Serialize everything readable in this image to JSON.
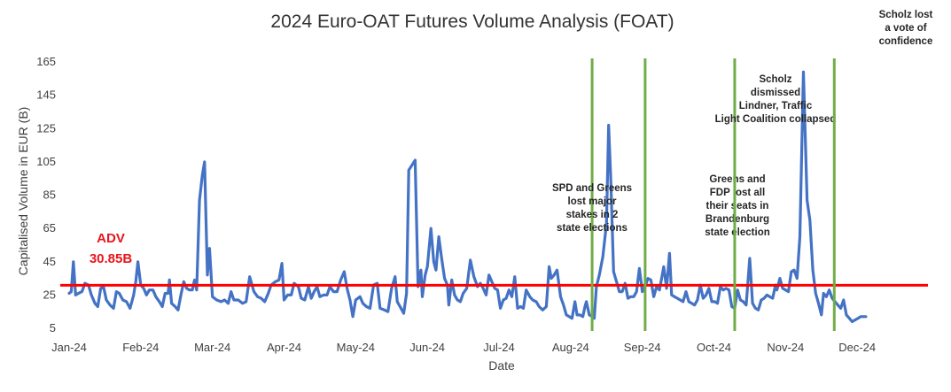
{
  "chart_data": {
    "type": "line",
    "title": "2024 Euro-OAT Futures Volume Analysis (FOAT)",
    "xlabel": "Date",
    "ylabel": "Capitalised Volume in EUR (B)",
    "ylim": [
      5,
      165
    ],
    "yticks": [
      5,
      25,
      45,
      65,
      85,
      105,
      125,
      145,
      165
    ],
    "xlim": [
      0,
      12
    ],
    "xticks": [
      {
        "label": "Jan-24",
        "x": 0
      },
      {
        "label": "Feb-24",
        "x": 1
      },
      {
        "label": "Mar-24",
        "x": 2
      },
      {
        "label": "Apr-24",
        "x": 3
      },
      {
        "label": "May-24",
        "x": 4
      },
      {
        "label": "Jun-24",
        "x": 5
      },
      {
        "label": "Jul-24",
        "x": 6
      },
      {
        "label": "Aug-24",
        "x": 7
      },
      {
        "label": "Sep-24",
        "x": 8
      },
      {
        "label": "Oct-24",
        "x": 9
      },
      {
        "label": "Nov-24",
        "x": 10
      },
      {
        "label": "Dec-24",
        "x": 11
      }
    ],
    "grid": false,
    "series": [
      {
        "color": "#4472c4",
        "points": [
          [
            0.0,
            26
          ],
          [
            0.03,
            27
          ],
          [
            0.06,
            45
          ],
          [
            0.09,
            25
          ],
          [
            0.13,
            26
          ],
          [
            0.18,
            27
          ],
          [
            0.22,
            32
          ],
          [
            0.27,
            31
          ],
          [
            0.31,
            25
          ],
          [
            0.36,
            20
          ],
          [
            0.4,
            18
          ],
          [
            0.44,
            29
          ],
          [
            0.48,
            30
          ],
          [
            0.52,
            22
          ],
          [
            0.57,
            19
          ],
          [
            0.62,
            17
          ],
          [
            0.66,
            27
          ],
          [
            0.7,
            26
          ],
          [
            0.75,
            22
          ],
          [
            0.8,
            21
          ],
          [
            0.85,
            17
          ],
          [
            0.9,
            25
          ],
          [
            0.93,
            33
          ],
          [
            0.96,
            45
          ],
          [
            1.0,
            31
          ],
          [
            1.04,
            29
          ],
          [
            1.08,
            25
          ],
          [
            1.12,
            28
          ],
          [
            1.17,
            28
          ],
          [
            1.21,
            24
          ],
          [
            1.26,
            21
          ],
          [
            1.3,
            18
          ],
          [
            1.34,
            26
          ],
          [
            1.38,
            26
          ],
          [
            1.4,
            34
          ],
          [
            1.43,
            20
          ],
          [
            1.48,
            18
          ],
          [
            1.52,
            16
          ],
          [
            1.56,
            25
          ],
          [
            1.6,
            33
          ],
          [
            1.64,
            29
          ],
          [
            1.68,
            28
          ],
          [
            1.72,
            28
          ],
          [
            1.75,
            34
          ],
          [
            1.78,
            28
          ],
          [
            1.82,
            82
          ],
          [
            1.86,
            97
          ],
          [
            1.89,
            105
          ],
          [
            1.93,
            37
          ],
          [
            1.96,
            53
          ],
          [
            2.0,
            24
          ],
          [
            2.06,
            22
          ],
          [
            2.12,
            21
          ],
          [
            2.17,
            22
          ],
          [
            2.22,
            20
          ],
          [
            2.26,
            27
          ],
          [
            2.3,
            22
          ],
          [
            2.36,
            22
          ],
          [
            2.42,
            20
          ],
          [
            2.47,
            21
          ],
          [
            2.52,
            36
          ],
          [
            2.58,
            27
          ],
          [
            2.63,
            24
          ],
          [
            2.68,
            23
          ],
          [
            2.73,
            21
          ],
          [
            2.78,
            26
          ],
          [
            2.82,
            31
          ],
          [
            2.88,
            33
          ],
          [
            2.93,
            34
          ],
          [
            2.97,
            44
          ],
          [
            3.0,
            22
          ],
          [
            3.05,
            25
          ],
          [
            3.1,
            25
          ],
          [
            3.14,
            32
          ],
          [
            3.2,
            30
          ],
          [
            3.24,
            23
          ],
          [
            3.29,
            22
          ],
          [
            3.34,
            30
          ],
          [
            3.38,
            23
          ],
          [
            3.42,
            27
          ],
          [
            3.46,
            30
          ],
          [
            3.5,
            24
          ],
          [
            3.55,
            25
          ],
          [
            3.6,
            25
          ],
          [
            3.64,
            30
          ],
          [
            3.69,
            27
          ],
          [
            3.74,
            27
          ],
          [
            3.79,
            34
          ],
          [
            3.84,
            39
          ],
          [
            3.88,
            29
          ],
          [
            3.92,
            22
          ],
          [
            3.96,
            12
          ],
          [
            4.0,
            22
          ],
          [
            4.06,
            24
          ],
          [
            4.1,
            20
          ],
          [
            4.15,
            18
          ],
          [
            4.2,
            17
          ],
          [
            4.25,
            31
          ],
          [
            4.3,
            32
          ],
          [
            4.34,
            17
          ],
          [
            4.4,
            16
          ],
          [
            4.45,
            15
          ],
          [
            4.5,
            29
          ],
          [
            4.55,
            36
          ],
          [
            4.58,
            21
          ],
          [
            4.62,
            18
          ],
          [
            4.67,
            14
          ],
          [
            4.71,
            26
          ],
          [
            4.74,
            100
          ],
          [
            4.8,
            104
          ],
          [
            4.83,
            106
          ],
          [
            4.87,
            30
          ],
          [
            4.91,
            40
          ],
          [
            4.93,
            24
          ],
          [
            4.97,
            37
          ],
          [
            5.0,
            42
          ],
          [
            5.05,
            65
          ],
          [
            5.09,
            45
          ],
          [
            5.12,
            40
          ],
          [
            5.16,
            60
          ],
          [
            5.2,
            47
          ],
          [
            5.24,
            35
          ],
          [
            5.28,
            31
          ],
          [
            5.3,
            19
          ],
          [
            5.34,
            34
          ],
          [
            5.38,
            25
          ],
          [
            5.42,
            22
          ],
          [
            5.46,
            21
          ],
          [
            5.5,
            26
          ],
          [
            5.55,
            29
          ],
          [
            5.6,
            46
          ],
          [
            5.65,
            36
          ],
          [
            5.7,
            30
          ],
          [
            5.74,
            32
          ],
          [
            5.78,
            29
          ],
          [
            5.82,
            25
          ],
          [
            5.86,
            37
          ],
          [
            5.9,
            33
          ],
          [
            5.94,
            29
          ],
          [
            5.98,
            28
          ],
          [
            6.02,
            17
          ],
          [
            6.06,
            22
          ],
          [
            6.1,
            23
          ],
          [
            6.14,
            28
          ],
          [
            6.18,
            24
          ],
          [
            6.22,
            36
          ],
          [
            6.26,
            17
          ],
          [
            6.3,
            18
          ],
          [
            6.34,
            17
          ],
          [
            6.38,
            28
          ],
          [
            6.43,
            24
          ],
          [
            6.47,
            22
          ],
          [
            6.52,
            21
          ],
          [
            6.56,
            18
          ],
          [
            6.61,
            16
          ],
          [
            6.66,
            18
          ],
          [
            6.7,
            42
          ],
          [
            6.73,
            35
          ],
          [
            6.77,
            37
          ],
          [
            6.81,
            40
          ],
          [
            6.86,
            24
          ],
          [
            6.9,
            19
          ],
          [
            6.94,
            13
          ],
          [
            6.98,
            12
          ],
          [
            7.02,
            11
          ],
          [
            7.06,
            21
          ],
          [
            7.09,
            13
          ],
          [
            7.13,
            13
          ],
          [
            7.17,
            12
          ],
          [
            7.2,
            18
          ],
          [
            7.22,
            21
          ],
          [
            7.26,
            13
          ],
          [
            7.3,
            12
          ],
          [
            7.33,
            11
          ],
          [
            7.36,
            30
          ],
          [
            7.4,
            37
          ],
          [
            7.45,
            48
          ],
          [
            7.5,
            68
          ],
          [
            7.53,
            127
          ],
          [
            7.56,
            95
          ],
          [
            7.6,
            39
          ],
          [
            7.64,
            33
          ],
          [
            7.68,
            27
          ],
          [
            7.72,
            27
          ],
          [
            7.76,
            32
          ],
          [
            7.8,
            23
          ],
          [
            7.84,
            24
          ],
          [
            7.88,
            24
          ],
          [
            7.92,
            27
          ],
          [
            7.96,
            41
          ],
          [
            8.0,
            27
          ],
          [
            8.04,
            30
          ],
          [
            8.08,
            35
          ],
          [
            8.12,
            34
          ],
          [
            8.16,
            24
          ],
          [
            8.2,
            30
          ],
          [
            8.24,
            28
          ],
          [
            8.3,
            42
          ],
          [
            8.34,
            29
          ],
          [
            8.38,
            50
          ],
          [
            8.41,
            25
          ],
          [
            8.45,
            24
          ],
          [
            8.49,
            23
          ],
          [
            8.53,
            22
          ],
          [
            8.57,
            21
          ],
          [
            8.61,
            27
          ],
          [
            8.65,
            21
          ],
          [
            8.69,
            20
          ],
          [
            8.73,
            19
          ],
          [
            8.77,
            22
          ],
          [
            8.81,
            31
          ],
          [
            8.85,
            23
          ],
          [
            8.89,
            25
          ],
          [
            8.93,
            29
          ],
          [
            8.97,
            21
          ],
          [
            9.01,
            21
          ],
          [
            9.05,
            20
          ],
          [
            9.09,
            30
          ],
          [
            9.13,
            28
          ],
          [
            9.17,
            29
          ],
          [
            9.21,
            28
          ],
          [
            9.25,
            18
          ],
          [
            9.29,
            17
          ],
          [
            9.33,
            28
          ],
          [
            9.37,
            22
          ],
          [
            9.41,
            21
          ],
          [
            9.45,
            19
          ],
          [
            9.5,
            47
          ],
          [
            9.54,
            20
          ],
          [
            9.58,
            17
          ],
          [
            9.62,
            16
          ],
          [
            9.66,
            22
          ],
          [
            9.7,
            23
          ],
          [
            9.74,
            25
          ],
          [
            9.78,
            24
          ],
          [
            9.82,
            23
          ],
          [
            9.86,
            31
          ],
          [
            9.88,
            28
          ],
          [
            9.92,
            35
          ],
          [
            9.96,
            29
          ],
          [
            10.0,
            28
          ],
          [
            10.04,
            27
          ],
          [
            10.08,
            39
          ],
          [
            10.12,
            40
          ],
          [
            10.16,
            35
          ],
          [
            10.2,
            60
          ],
          [
            10.25,
            159
          ],
          [
            10.3,
            82
          ],
          [
            10.34,
            70
          ],
          [
            10.38,
            40
          ],
          [
            10.42,
            26
          ],
          [
            10.46,
            20
          ],
          [
            10.5,
            13
          ],
          [
            10.53,
            26
          ],
          [
            10.57,
            24
          ],
          [
            10.61,
            28
          ],
          [
            10.65,
            23
          ],
          [
            10.69,
            21
          ],
          [
            10.73,
            19
          ],
          [
            10.77,
            17
          ],
          [
            10.81,
            22
          ],
          [
            10.85,
            13
          ],
          [
            10.89,
            11
          ],
          [
            10.93,
            9
          ],
          [
            10.97,
            10
          ],
          [
            11.01,
            11
          ],
          [
            11.05,
            12
          ],
          [
            11.09,
            12
          ],
          [
            11.12,
            12
          ]
        ]
      }
    ],
    "reference_line": {
      "label": "ADV",
      "value_label": "30.85B",
      "value": 30.85,
      "color": "#ff0000"
    },
    "event_lines": [
      {
        "x": 7.3,
        "text": "SPD and Greens lost major stakes in 2 state elections",
        "color": "#70ad47"
      },
      {
        "x": 8.04,
        "text": "Greens and FDP lost all their seats in Brandenburg state election",
        "color": "#70ad47"
      },
      {
        "x": 9.29,
        "text": "Scholz dismissed Lindner, Traffic Light Coalition collapsed",
        "color": "#70ad47"
      },
      {
        "x": 10.68,
        "text": "Scholz lost a vote of confidence",
        "color": "#70ad47"
      }
    ]
  }
}
